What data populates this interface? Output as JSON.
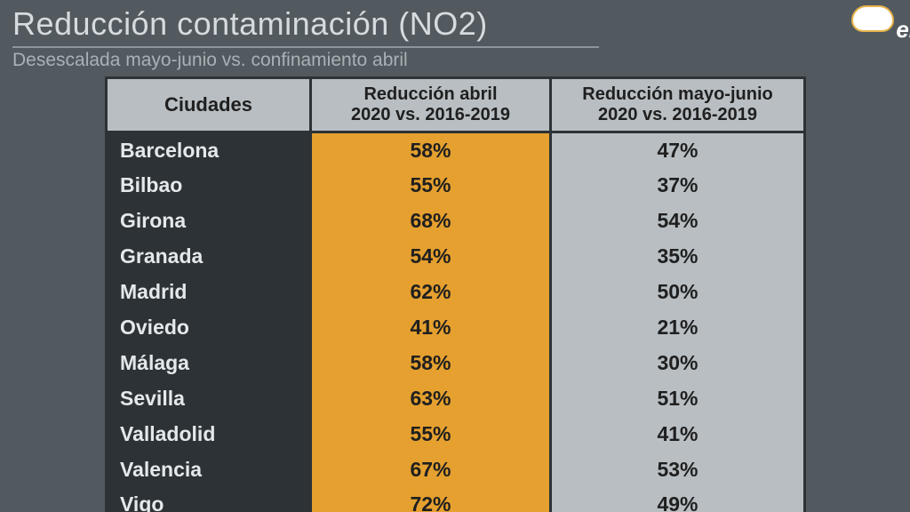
{
  "meta": {
    "type": "table",
    "background_color": "#525a5f",
    "header_bg": "#b8bec2",
    "city_col_bg": "#2c3236",
    "col_april_bg": "#e5a02f",
    "col_mayjun_bg": "#b8bec2",
    "border_color": "#2c3236",
    "text_light": "#e5e8ea",
    "text_dark": "#1f1f1f",
    "title_color": "#d6dbdf",
    "subtitle_color": "#a9b0b6",
    "title_fontsize": 36,
    "subtitle_fontsize": 21,
    "cell_fontsize": 23,
    "header_fontsize": 20
  },
  "title": "Reducción contaminación (NO2)",
  "subtitle": "Desescalada mayo-junio  vs. confinamiento abril",
  "logo_text": "el",
  "columns": {
    "cities": "Ciudades",
    "april_line1": "Reducción abril",
    "april_line2": "2020 vs. 2016-2019",
    "mayjun_line1": "Reducción mayo-junio",
    "mayjun_line2": "2020 vs. 2016-2019"
  },
  "rows": [
    {
      "city": "Barcelona",
      "april": "58%",
      "mayjun": "47%"
    },
    {
      "city": "Bilbao",
      "april": "55%",
      "mayjun": "37%"
    },
    {
      "city": "Girona",
      "april": "68%",
      "mayjun": "54%"
    },
    {
      "city": "Granada",
      "april": "54%",
      "mayjun": "35%"
    },
    {
      "city": "Madrid",
      "april": "62%",
      "mayjun": "50%"
    },
    {
      "city": "Oviedo",
      "april": "41%",
      "mayjun": "21%"
    },
    {
      "city": "Málaga",
      "april": "58%",
      "mayjun": "30%"
    },
    {
      "city": "Sevilla",
      "april": "63%",
      "mayjun": "51%"
    },
    {
      "city": "Valladolid",
      "april": "55%",
      "mayjun": "41%"
    },
    {
      "city": "Valencia",
      "april": "67%",
      "mayjun": "53%"
    },
    {
      "city": "Vigo",
      "april": "72%",
      "mayjun": "49%"
    }
  ]
}
